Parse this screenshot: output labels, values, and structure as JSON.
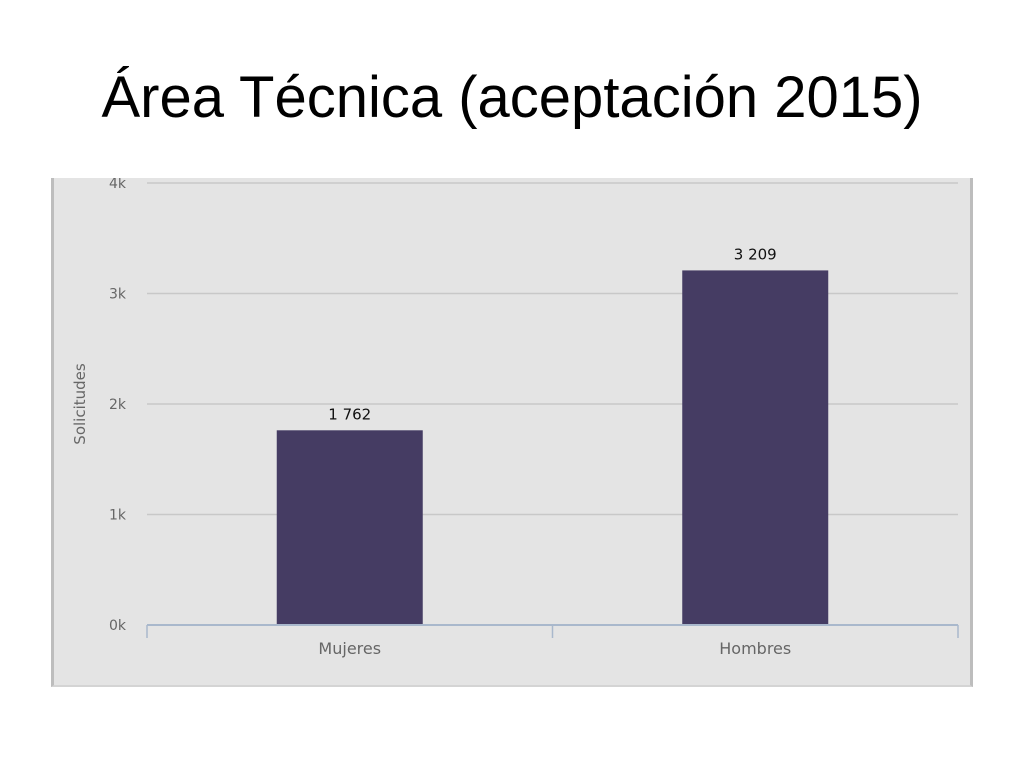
{
  "title": "Área Técnica (aceptación 2015)",
  "chart_data": {
    "type": "bar",
    "categories": [
      "Mujeres",
      "Hombres"
    ],
    "values": [
      1762,
      3209
    ],
    "data_labels": [
      "1 762",
      "3 209"
    ],
    "title": "",
    "xlabel": "",
    "ylabel": "Solicitudes",
    "ylim": [
      0,
      4000
    ],
    "yticks": [
      0,
      1000,
      2000,
      3000,
      4000
    ],
    "ytick_labels": [
      "0k",
      "1k",
      "2k",
      "3k",
      "4k"
    ],
    "grid": true,
    "legend": "none",
    "colors": {
      "bar": "#453c63",
      "background": "#e4e4e4",
      "gridline": "#c8c8c8",
      "axis": "#a9b8cc",
      "tick_text": "#666666",
      "label_text": "#111111"
    }
  }
}
